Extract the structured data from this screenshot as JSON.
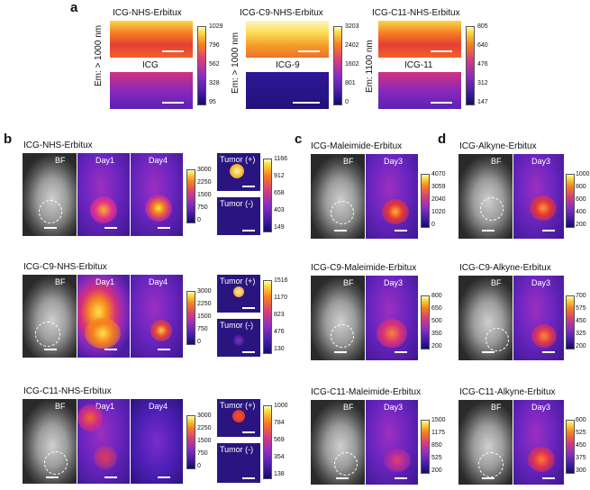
{
  "panel_labels": {
    "a": "a",
    "b": "b",
    "c": "c",
    "d": "d"
  },
  "panel_a": {
    "y_titles": [
      "Em: > 1000 nm",
      "Em: > 1000 nm",
      "Em: 1100 nm"
    ],
    "groups": [
      {
        "top": "ICG-NHS-Erbitux",
        "bottom": "ICG",
        "ticks": [
          "1029",
          "796",
          "562",
          "328",
          "95"
        ]
      },
      {
        "top": "ICG-C9-NHS-Erbitux",
        "bottom": "ICG-9",
        "ticks": [
          "3203",
          "2402",
          "1602",
          "801",
          "0"
        ]
      },
      {
        "top": "ICG-C11-NHS-Erbitux",
        "bottom": "ICG-11",
        "ticks": [
          "805",
          "640",
          "476",
          "312",
          "147"
        ]
      }
    ]
  },
  "panel_b": {
    "rows": [
      {
        "title": "ICG-NHS-Erbitux",
        "ticks": [
          "3000",
          "2250",
          "1500",
          "750",
          "0"
        ],
        "tumor_ticks": [
          "1166",
          "912",
          "658",
          "403",
          "149"
        ]
      },
      {
        "title": "ICG-C9-NHS-Erbitux",
        "ticks": [
          "3000",
          "2250",
          "1500",
          "750",
          "0"
        ],
        "tumor_ticks": [
          "1516",
          "1170",
          "823",
          "476",
          "130"
        ]
      },
      {
        "title": "ICG-C11-NHS-Erbitux",
        "ticks": [
          "3000",
          "2250",
          "1500",
          "750",
          "0"
        ],
        "tumor_ticks": [
          "1000",
          "784",
          "569",
          "354",
          "138"
        ]
      }
    ],
    "bf": "BF",
    "day1": "Day1",
    "day4": "Day4",
    "tumor_pos": "Tumor (+)",
    "tumor_neg": "Tumor (-)"
  },
  "panel_c": {
    "rows": [
      {
        "title": "ICG-Maleimide-Erbitux",
        "ticks": [
          "4070",
          "3059",
          "2040",
          "1020",
          "0"
        ]
      },
      {
        "title": "ICG-C9-Maleimide-Erbitux",
        "ticks": [
          "800",
          "650",
          "500",
          "350",
          "200"
        ]
      },
      {
        "title": "ICG-C11-Maleimide-Erbitux",
        "ticks": [
          "1500",
          "1175",
          "850",
          "525",
          "200"
        ]
      }
    ],
    "bf": "BF",
    "day3": "Day3"
  },
  "panel_d": {
    "rows": [
      {
        "title": "ICG-Alkyne-Erbitux",
        "ticks": [
          "1000",
          "800",
          "600",
          "400",
          "200"
        ]
      },
      {
        "title": "ICG-C9-Alkyne-Erbitux",
        "ticks": [
          "700",
          "575",
          "450",
          "325",
          "200"
        ]
      },
      {
        "title": "ICG-C11-Alkyne-Erbitux",
        "ticks": [
          "600",
          "525",
          "450",
          "375",
          "300"
        ]
      }
    ],
    "bf": "BF",
    "day3": "Day3"
  }
}
